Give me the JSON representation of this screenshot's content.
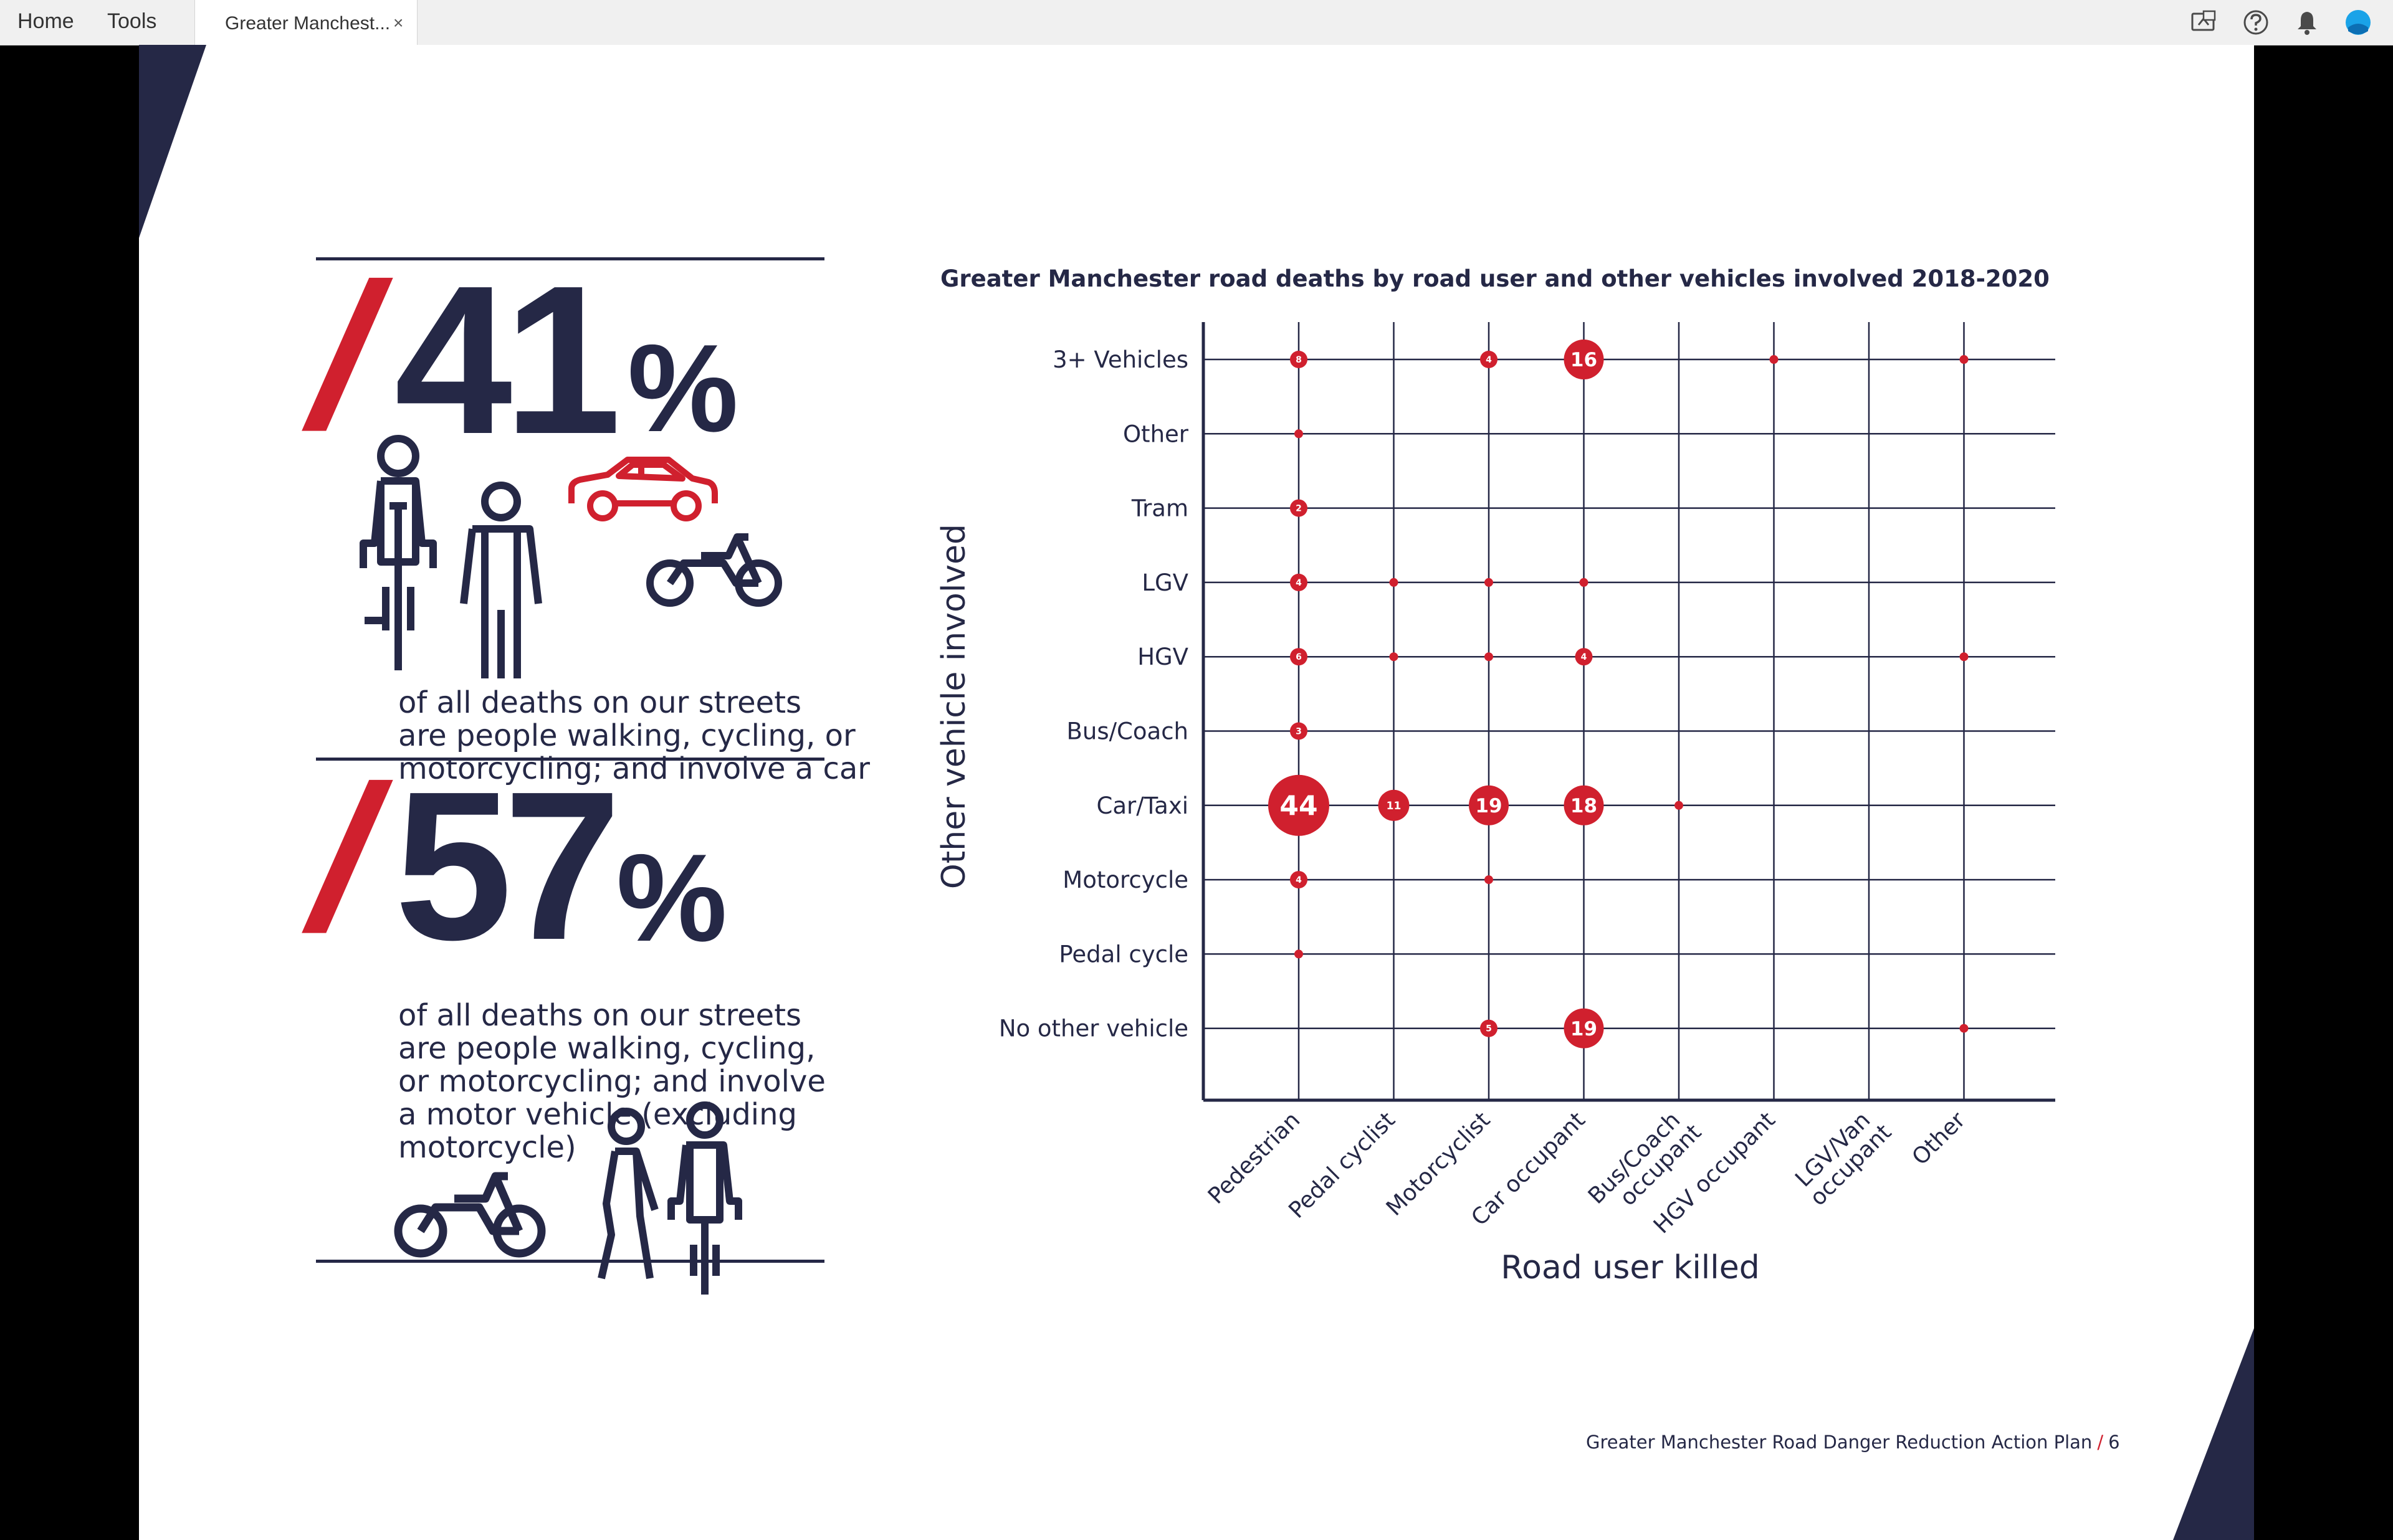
{
  "nav": {
    "home": "Home",
    "tools": "Tools"
  },
  "tab": {
    "title": "Greater Manchest...",
    "close": "×"
  },
  "toolbar_icons": [
    "screen-share-icon",
    "help-icon",
    "bell-icon",
    "profile-icon"
  ],
  "colors": {
    "navy": "#252846",
    "red": "#d0202e",
    "accent": "#1aa3e8"
  },
  "stats": [
    {
      "prefix": "/",
      "value": "41",
      "unit": "%",
      "text": "of all deaths on our streets\nare people walking, cycling, or\nmotorcycling; and involve a car",
      "icons": [
        "cyclist-icon",
        "pedestrian-icon",
        "car-icon",
        "motorcycle-icon"
      ]
    },
    {
      "prefix": "/",
      "value": "57",
      "unit": "%",
      "text": "of all deaths on our streets\nare people walking, cycling,\nor motorcycling; and involve\na motor vehicle (excluding\nmotorcycle)",
      "icons": [
        "motorcycle-icon",
        "pedestrian-icon",
        "cyclist-icon"
      ]
    }
  ],
  "chart_data": {
    "type": "scatter",
    "title": "Greater Manchester road deaths by road user and other vehicles involved 2018-2020",
    "xlabel": "Road user killed",
    "ylabel": "Other vehicle involved",
    "x_categories": [
      "Pedestrian",
      "Pedal cyclist",
      "Motorcyclist",
      "Car occupant",
      "Bus/Coach occupant",
      "HGV occupant",
      "LGV/Van occupant",
      "Other"
    ],
    "x_tick_lines": [
      [
        "Pedestrian"
      ],
      [
        "Pedal cyclist"
      ],
      [
        "Motorcyclist"
      ],
      [
        "Car occupant"
      ],
      [
        "Bus/Coach",
        "occupant"
      ],
      [
        "HGV occupant"
      ],
      [
        "LGV/Van",
        "occupant"
      ],
      [
        "Other"
      ]
    ],
    "y_categories": [
      "3+ Vehicles",
      "Other",
      "Tram",
      "LGV",
      "HGV",
      "Bus/Coach",
      "Car/Taxi",
      "Motorcycle",
      "Pedal cycle",
      "No other vehicle"
    ],
    "grid": true,
    "points": [
      {
        "x": "Pedestrian",
        "y": "3+ Vehicles",
        "value": 8,
        "label": "8"
      },
      {
        "x": "Motorcyclist",
        "y": "3+ Vehicles",
        "value": 4,
        "label": "4"
      },
      {
        "x": "Car occupant",
        "y": "3+ Vehicles",
        "value": 16,
        "label": "16"
      },
      {
        "x": "HGV occupant",
        "y": "3+ Vehicles",
        "value": 1,
        "label": ""
      },
      {
        "x": "Other",
        "y": "3+ Vehicles",
        "value": 1,
        "label": ""
      },
      {
        "x": "Pedestrian",
        "y": "Other",
        "value": 1,
        "label": ""
      },
      {
        "x": "Pedestrian",
        "y": "Tram",
        "value": 2,
        "label": "2"
      },
      {
        "x": "Pedestrian",
        "y": "LGV",
        "value": 4,
        "label": "4"
      },
      {
        "x": "Pedal cyclist",
        "y": "LGV",
        "value": 1,
        "label": ""
      },
      {
        "x": "Motorcyclist",
        "y": "LGV",
        "value": 1,
        "label": ""
      },
      {
        "x": "Car occupant",
        "y": "LGV",
        "value": 1,
        "label": ""
      },
      {
        "x": "Pedestrian",
        "y": "HGV",
        "value": 6,
        "label": "6"
      },
      {
        "x": "Pedal cyclist",
        "y": "HGV",
        "value": 1,
        "label": ""
      },
      {
        "x": "Motorcyclist",
        "y": "HGV",
        "value": 1,
        "label": ""
      },
      {
        "x": "Car occupant",
        "y": "HGV",
        "value": 4,
        "label": "4"
      },
      {
        "x": "Other",
        "y": "HGV",
        "value": 1,
        "label": ""
      },
      {
        "x": "Pedestrian",
        "y": "Bus/Coach",
        "value": 3,
        "label": "3"
      },
      {
        "x": "Pedestrian",
        "y": "Car/Taxi",
        "value": 44,
        "label": "44"
      },
      {
        "x": "Pedal cyclist",
        "y": "Car/Taxi",
        "value": 11,
        "label": "11"
      },
      {
        "x": "Motorcyclist",
        "y": "Car/Taxi",
        "value": 19,
        "label": "19"
      },
      {
        "x": "Car occupant",
        "y": "Car/Taxi",
        "value": 18,
        "label": "18"
      },
      {
        "x": "Bus/Coach occupant",
        "y": "Car/Taxi",
        "value": 1,
        "label": ""
      },
      {
        "x": "Pedestrian",
        "y": "Motorcycle",
        "value": 4,
        "label": "4"
      },
      {
        "x": "Motorcyclist",
        "y": "Motorcycle",
        "value": 1,
        "label": ""
      },
      {
        "x": "Pedestrian",
        "y": "Pedal cycle",
        "value": 1,
        "label": ""
      },
      {
        "x": "Motorcyclist",
        "y": "No other vehicle",
        "value": 5,
        "label": "5"
      },
      {
        "x": "Car occupant",
        "y": "No other vehicle",
        "value": 19,
        "label": "19"
      },
      {
        "x": "Other",
        "y": "No other vehicle",
        "value": 1,
        "label": ""
      }
    ]
  },
  "footer": {
    "doc_title": "Greater Manchester Road Danger Reduction Action Plan",
    "slash": "/",
    "page_number": "6"
  }
}
